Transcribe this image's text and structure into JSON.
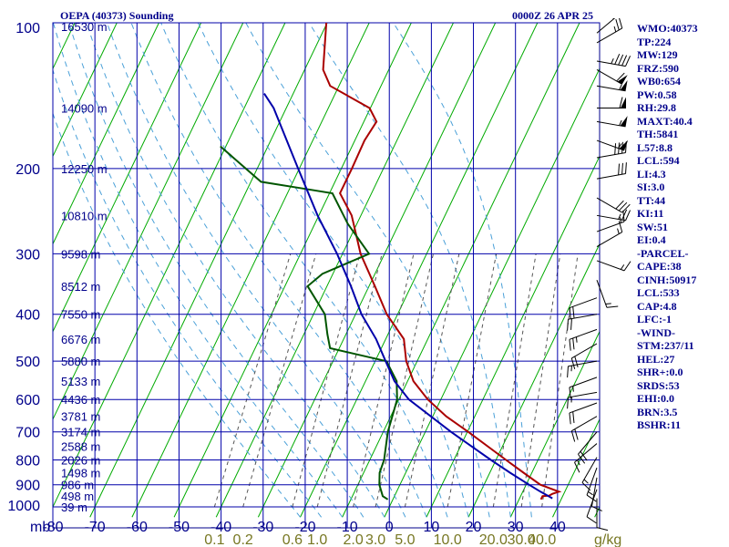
{
  "title": "OEPA (40373) Sounding",
  "timestamp": "0000Z 26 APR 25",
  "stats": [
    "WMO:40373",
    "TP:224",
    "MW:129",
    "FRZ:590",
    "WB0:654",
    "PW:0.58",
    "RH:29.8",
    "MAXT:40.4",
    "TH:5841",
    "L57:8.8",
    "LCL:594",
    "LI:4.3",
    "SI:3.0",
    "TT:44",
    "KI:11",
    "SW:51",
    "EI:0.4",
    "-PARCEL-",
    "CAPE:38",
    "CINH:50917",
    "LCL:533",
    "CAP:4.8",
    "LFC:-1",
    "-WIND-",
    "STM:237/11",
    "HEL:27",
    "SHR+:0.0",
    "SRDS:53",
    "EHI:0.0",
    "BRN:3.5",
    "BSHR:11"
  ],
  "colors": {
    "frame": "#00008b",
    "grid": "#0000aa",
    "isotherm": "#00aa00",
    "temperature": "#aa0000",
    "dewpoint": "#005500",
    "parcel": "#0000aa",
    "mixing_ratio": "#555555",
    "moist_adiabat": "#4aa0d8",
    "barb": "#000000"
  },
  "chart_data": {
    "type": "line",
    "ylog": true,
    "xlim": [
      -80,
      50
    ],
    "ylim": [
      1000,
      100
    ],
    "pressure_ticks": [
      100,
      200,
      300,
      400,
      500,
      600,
      700,
      800,
      900,
      1000
    ],
    "temp_ticks": [
      -80,
      -70,
      -60,
      -50,
      -40,
      -30,
      -20,
      -10,
      0,
      10,
      20,
      30,
      40
    ],
    "pressure_unit": "mb",
    "mixing_ratio_unit": "g/kg",
    "height_labels": [
      {
        "p": 100,
        "label": "16530 m"
      },
      {
        "p": 150,
        "label": "14090 m"
      },
      {
        "p": 200,
        "label": "12250 m"
      },
      {
        "p": 250,
        "label": "10810 m"
      },
      {
        "p": 300,
        "label": "9598 m"
      },
      {
        "p": 350,
        "label": "8512 m"
      },
      {
        "p": 400,
        "label": "7550 m"
      },
      {
        "p": 450,
        "label": "6676 m"
      },
      {
        "p": 500,
        "label": "5880 m"
      },
      {
        "p": 550,
        "label": "5133 m"
      },
      {
        "p": 600,
        "label": "4436 m"
      },
      {
        "p": 650,
        "label": "3781 m"
      },
      {
        "p": 700,
        "label": "3174 m"
      },
      {
        "p": 750,
        "label": "2588 m"
      },
      {
        "p": 800,
        "label": "2026 m"
      },
      {
        "p": 850,
        "label": "1498 m"
      },
      {
        "p": 900,
        "label": "986 m"
      },
      {
        "p": 950,
        "label": "498 m"
      },
      {
        "p": 1000,
        "label": "39 m"
      }
    ],
    "mixing_ratio_labels": [
      "0.1",
      "0.2",
      "0.6",
      "1.0",
      "2.0",
      "3.0",
      "5.0",
      "10.0",
      "20.0",
      "30.0",
      "40.0"
    ],
    "mixing_ratio_values": [
      0.1,
      0.2,
      0.6,
      1.0,
      2.0,
      3.0,
      5.0,
      10.0,
      20.0,
      30.0,
      40.0
    ],
    "series": [
      {
        "key": "temperature",
        "points": [
          {
            "p": 965,
            "t": 35.2
          },
          {
            "p": 950,
            "t": 35.2
          },
          {
            "p": 948,
            "t": 36.7
          },
          {
            "p": 940,
            "t": 37.3
          },
          {
            "p": 930,
            "t": 38.6
          },
          {
            "p": 900,
            "t": 33.4
          },
          {
            "p": 850,
            "t": 28.0
          },
          {
            "p": 800,
            "t": 22.4
          },
          {
            "p": 700,
            "t": 10.2
          },
          {
            "p": 650,
            "t": 3.2
          },
          {
            "p": 600,
            "t": -3.1
          },
          {
            "p": 550,
            "t": -8.6
          },
          {
            "p": 500,
            "t": -12.6
          },
          {
            "p": 450,
            "t": -15.7
          },
          {
            "p": 400,
            "t": -22.6
          },
          {
            "p": 350,
            "t": -28.6
          },
          {
            "p": 300,
            "t": -35.7
          },
          {
            "p": 250,
            "t": -42.2
          },
          {
            "p": 225,
            "t": -47.5
          },
          {
            "p": 200,
            "t": -47.5
          },
          {
            "p": 175,
            "t": -47.7
          },
          {
            "p": 160,
            "t": -47.0
          },
          {
            "p": 150,
            "t": -50.2
          },
          {
            "p": 135,
            "t": -62.1
          },
          {
            "p": 125,
            "t": -65.6
          },
          {
            "p": 100,
            "t": -70.2
          }
        ]
      },
      {
        "key": "dewpoint",
        "points": [
          {
            "p": 965,
            "t": -1.2
          },
          {
            "p": 950,
            "t": -2.8
          },
          {
            "p": 900,
            "t": -4.9
          },
          {
            "p": 850,
            "t": -6.2
          },
          {
            "p": 800,
            "t": -6.6
          },
          {
            "p": 700,
            "t": -8.9
          },
          {
            "p": 600,
            "t": -10.4
          },
          {
            "p": 550,
            "t": -12.6
          },
          {
            "p": 500,
            "t": -17.3
          },
          {
            "p": 470,
            "t": -32.2
          },
          {
            "p": 440,
            "t": -34.4
          },
          {
            "p": 400,
            "t": -37.3
          },
          {
            "p": 350,
            "t": -44.6
          },
          {
            "p": 330,
            "t": -42.5
          },
          {
            "p": 300,
            "t": -33.7
          },
          {
            "p": 260,
            "t": -42.2
          },
          {
            "p": 225,
            "t": -49.3
          },
          {
            "p": 220,
            "t": -56.8
          },
          {
            "p": 213,
            "t": -67.6
          },
          {
            "p": 180,
            "t": -81.3
          }
        ]
      },
      {
        "key": "parcel",
        "points": [
          {
            "p": 960,
            "t": 37.8
          },
          {
            "p": 930,
            "t": 34.2
          },
          {
            "p": 900,
            "t": 30.7
          },
          {
            "p": 850,
            "t": 24.8
          },
          {
            "p": 800,
            "t": 18.8
          },
          {
            "p": 700,
            "t": 6.1
          },
          {
            "p": 600,
            "t": -7.6
          },
          {
            "p": 550,
            "t": -13.1
          },
          {
            "p": 500,
            "t": -17.5
          },
          {
            "p": 450,
            "t": -22.3
          },
          {
            "p": 400,
            "t": -28.6
          },
          {
            "p": 350,
            "t": -34.3
          },
          {
            "p": 300,
            "t": -41.3
          },
          {
            "p": 250,
            "t": -50.3
          },
          {
            "p": 200,
            "t": -60.3
          },
          {
            "p": 150,
            "t": -73.0
          },
          {
            "p": 140,
            "t": -76.9
          }
        ]
      }
    ],
    "wind_barbs": [
      {
        "p": 105,
        "dir": 50,
        "spd": 30
      },
      {
        "p": 110,
        "dir": 60,
        "spd": 25
      },
      {
        "p": 120,
        "dir": 100,
        "spd": 45
      },
      {
        "p": 125,
        "dir": 120,
        "spd": 60
      },
      {
        "p": 135,
        "dir": 100,
        "spd": 55
      },
      {
        "p": 150,
        "dir": 90,
        "spd": 60
      },
      {
        "p": 160,
        "dir": 100,
        "spd": 55
      },
      {
        "p": 175,
        "dir": 110,
        "spd": 55
      },
      {
        "p": 190,
        "dir": 80,
        "spd": 40
      },
      {
        "p": 210,
        "dir": 80,
        "spd": 30
      },
      {
        "p": 230,
        "dir": 120,
        "spd": 30
      },
      {
        "p": 250,
        "dir": 100,
        "spd": 25
      },
      {
        "p": 270,
        "dir": 70,
        "spd": 15
      },
      {
        "p": 290,
        "dir": 60,
        "spd": 15
      },
      {
        "p": 310,
        "dir": 110,
        "spd": 15
      },
      {
        "p": 340,
        "dir": 160,
        "spd": 15
      },
      {
        "p": 370,
        "dir": 250,
        "spd": 20
      },
      {
        "p": 400,
        "dir": 260,
        "spd": 20
      },
      {
        "p": 430,
        "dir": 250,
        "spd": 25
      },
      {
        "p": 460,
        "dir": 240,
        "spd": 20
      },
      {
        "p": 500,
        "dir": 260,
        "spd": 15
      },
      {
        "p": 540,
        "dir": 250,
        "spd": 15
      },
      {
        "p": 580,
        "dir": 260,
        "spd": 15
      },
      {
        "p": 610,
        "dir": 250,
        "spd": 20
      },
      {
        "p": 650,
        "dir": 240,
        "spd": 20
      },
      {
        "p": 700,
        "dir": 220,
        "spd": 20
      },
      {
        "p": 740,
        "dir": 230,
        "spd": 15
      },
      {
        "p": 790,
        "dir": 210,
        "spd": 15
      },
      {
        "p": 830,
        "dir": 200,
        "spd": 15
      },
      {
        "p": 870,
        "dir": 190,
        "spd": 10
      },
      {
        "p": 920,
        "dir": 200,
        "spd": 10
      },
      {
        "p": 960,
        "dir": 180,
        "spd": 10
      }
    ]
  }
}
